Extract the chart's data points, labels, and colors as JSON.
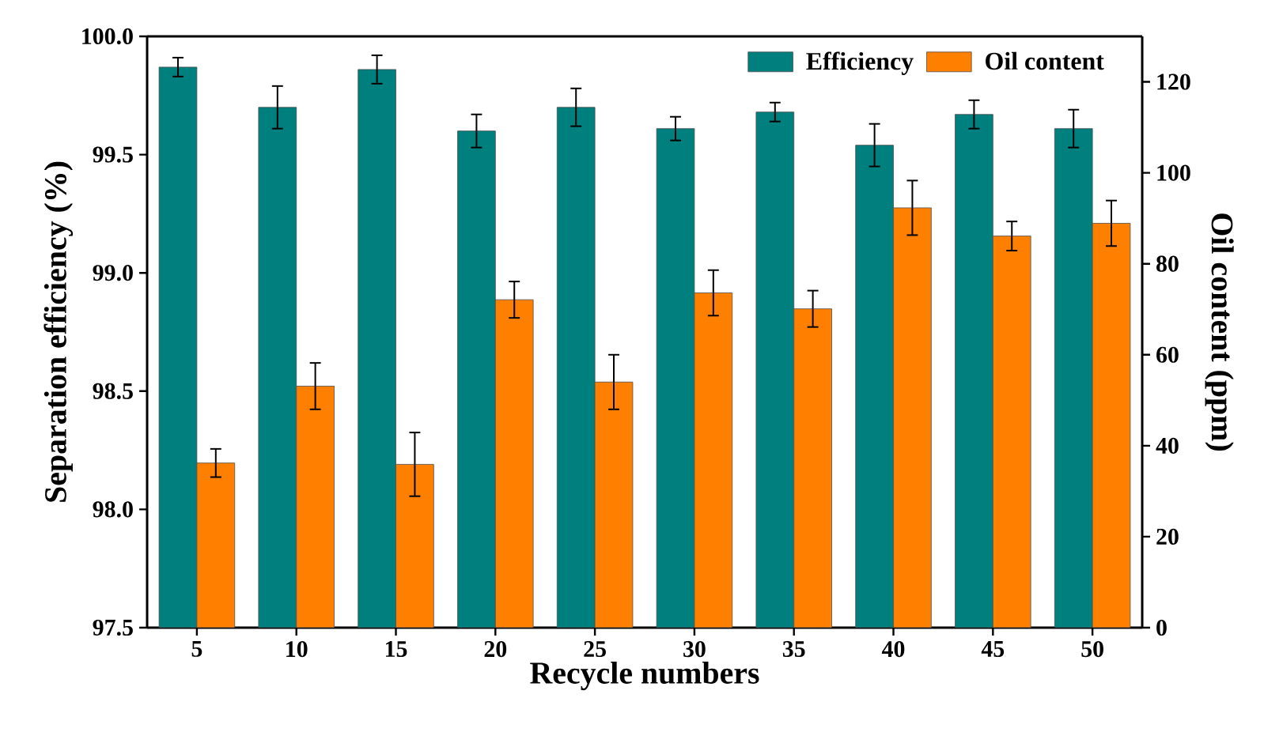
{
  "chart_data": {
    "type": "bar",
    "xlabel": "Recycle numbers",
    "ylabel": "Separation efficiency (%)",
    "y2label": "Oil content (ppm)",
    "categories": [
      "5",
      "10",
      "15",
      "20",
      "25",
      "30",
      "35",
      "40",
      "45",
      "50"
    ],
    "series": [
      {
        "name": "Efficiency",
        "color": "#007f7f",
        "values": [
          99.87,
          99.7,
          99.86,
          99.6,
          99.7,
          99.61,
          99.68,
          99.54,
          99.67,
          99.61
        ],
        "errors": [
          0.04,
          0.09,
          0.06,
          0.07,
          0.08,
          0.05,
          0.04,
          0.09,
          0.06,
          0.08
        ]
      },
      {
        "name": "Oil content",
        "color": "#ff8000",
        "axis": "y2",
        "values": [
          36.2,
          53.1,
          35.9,
          72.1,
          54.0,
          73.6,
          70.1,
          92.3,
          86.1,
          88.9
        ],
        "errors": [
          3.1,
          5.1,
          7,
          4,
          6,
          5,
          4,
          6,
          3.2,
          5
        ]
      }
    ],
    "ylim": [
      97.5,
      100.0
    ],
    "yticks": [
      {
        "value": 97.5,
        "label": "97.5"
      },
      {
        "value": 98.0,
        "label": "98.0"
      },
      {
        "value": 98.5,
        "label": "98.5"
      },
      {
        "value": 99.0,
        "label": "99.0"
      },
      {
        "value": 99.5,
        "label": "99.5"
      },
      {
        "value": 100.0,
        "label": "100.0"
      }
    ],
    "y2lim": [
      0,
      130
    ],
    "y2ticks": [
      0,
      20,
      40,
      60,
      80,
      100,
      120
    ],
    "legend": "top right"
  }
}
